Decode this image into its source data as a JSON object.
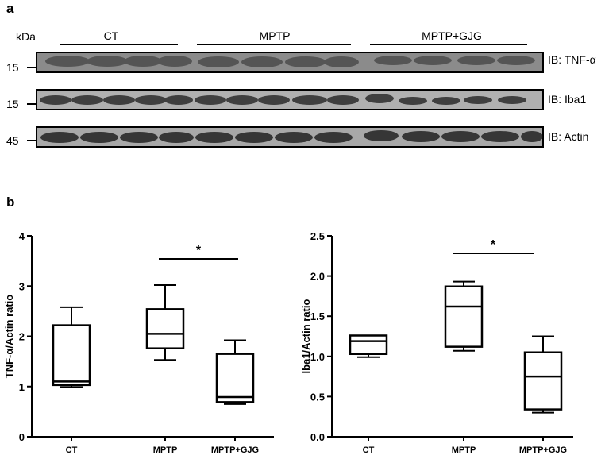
{
  "panel_a": {
    "letter": "a",
    "kda_label": "kDa",
    "group_labels": [
      "CT",
      "MPTP",
      "MPTP+GJG"
    ],
    "blots": [
      {
        "mw": "15",
        "ib_label": "IB: TNF-α"
      },
      {
        "mw": "15",
        "ib_label": "IB: Iba1"
      },
      {
        "mw": "45",
        "ib_label": "IB: Actin"
      }
    ]
  },
  "panel_b": {
    "letter": "b"
  },
  "chart_data": [
    {
      "type": "boxplot",
      "ylabel": "TNF-α/Actin ratio",
      "xlabel": "",
      "ylim": [
        0,
        4
      ],
      "yticks": [
        "0",
        "1",
        "2",
        "3",
        "4"
      ],
      "categories": [
        "CT",
        "MPTP",
        "MPTP+GJG"
      ],
      "boxes": [
        {
          "min": 0.99,
          "q1": 1.03,
          "median": 1.1,
          "q3": 2.22,
          "max": 2.58
        },
        {
          "min": 1.53,
          "q1": 1.76,
          "median": 2.05,
          "q3": 2.54,
          "max": 3.02
        },
        {
          "min": 0.65,
          "q1": 0.69,
          "median": 0.79,
          "q3": 1.65,
          "max": 1.92
        }
      ],
      "significance": {
        "from": "MPTP",
        "to": "MPTP+GJG",
        "label": "*"
      }
    },
    {
      "type": "boxplot",
      "ylabel": "Iba1/Actin ratio",
      "xlabel": "",
      "ylim": [
        0,
        2.5
      ],
      "yticks": [
        "0.0",
        "0.5",
        "1.0",
        "1.5",
        "2.0",
        "2.5"
      ],
      "categories": [
        "CT",
        "MPTP",
        "MPTP+GJG"
      ],
      "boxes": [
        {
          "min": 0.99,
          "q1": 1.03,
          "median": 1.19,
          "q3": 1.26,
          "max": 1.26
        },
        {
          "min": 1.07,
          "q1": 1.12,
          "median": 1.62,
          "q3": 1.87,
          "max": 1.93
        },
        {
          "min": 0.3,
          "q1": 0.34,
          "median": 0.75,
          "q3": 1.05,
          "max": 1.25
        }
      ],
      "significance": {
        "from": "MPTP",
        "to": "MPTP+GJG",
        "label": "*"
      }
    }
  ]
}
